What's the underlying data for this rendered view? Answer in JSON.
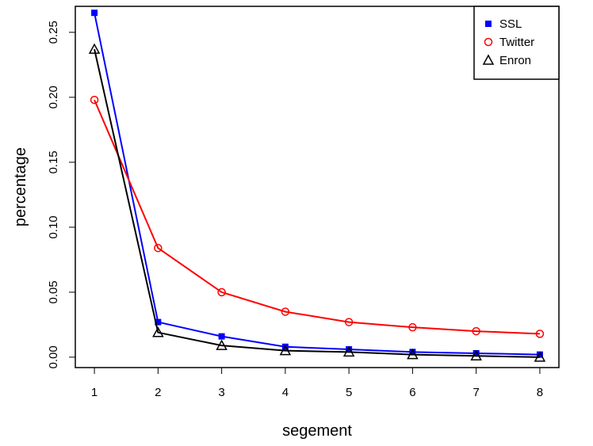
{
  "chart_data": {
    "type": "line",
    "xlabel": "segement",
    "ylabel": "percentage",
    "x": [
      1,
      2,
      3,
      4,
      5,
      6,
      7,
      8
    ],
    "x_ticks": [
      "1",
      "2",
      "3",
      "4",
      "5",
      "6",
      "7",
      "8"
    ],
    "y_ticks": [
      "0.00",
      "0.05",
      "0.10",
      "0.15",
      "0.20",
      "0.25"
    ],
    "xlim": [
      0.7,
      8.3
    ],
    "ylim": [
      -0.008,
      0.27
    ],
    "grid": false,
    "legend_position": "top-right",
    "series": [
      {
        "name": "SSL",
        "color": "#0000ff",
        "marker": "square",
        "values": [
          0.265,
          0.027,
          0.016,
          0.008,
          0.006,
          0.004,
          0.003,
          0.002
        ]
      },
      {
        "name": "Twitter",
        "color": "#ff0000",
        "marker": "circle",
        "values": [
          0.198,
          0.084,
          0.05,
          0.035,
          0.027,
          0.023,
          0.02,
          0.018
        ]
      },
      {
        "name": "Enron",
        "color": "#000000",
        "marker": "triangle",
        "values": [
          0.237,
          0.019,
          0.009,
          0.005,
          0.004,
          0.002,
          0.001,
          0.0
        ]
      }
    ]
  }
}
